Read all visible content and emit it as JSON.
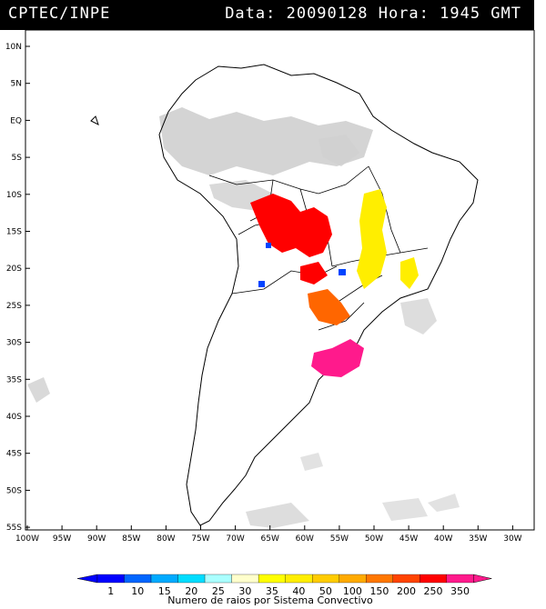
{
  "header": {
    "left": "CPTEC/INPE",
    "right": "Data: 20090128 Hora: 1945 GMT"
  },
  "map": {
    "lat_labels": [
      "10N",
      "5N",
      "EQ",
      "5S",
      "10S",
      "15S",
      "20S",
      "25S",
      "30S",
      "35S",
      "40S",
      "45S",
      "50S",
      "55S"
    ],
    "lon_labels": [
      "100W",
      "95W",
      "90W",
      "85W",
      "80W",
      "75W",
      "70W",
      "65W",
      "60W",
      "55W",
      "50W",
      "45W",
      "40W",
      "35W",
      "30W"
    ],
    "colors": {
      "land_line": "#000000",
      "cloud": "#cfcfcf",
      "background": "#ffffff"
    }
  },
  "systems": [
    {
      "name": "red-cluster",
      "class": "250-350",
      "color": "#ff0000"
    },
    {
      "name": "yellow-cluster",
      "class": "35-40",
      "color": "#ffee00"
    },
    {
      "name": "orange-cluster",
      "class": "200-250",
      "color": "#ff6600"
    },
    {
      "name": "magenta-cluster",
      "class": ">350",
      "color": "#ff1a8c"
    },
    {
      "name": "blue-cells",
      "class": "1-10",
      "color": "#0044ff"
    }
  ],
  "legend": {
    "labels": [
      "1",
      "10",
      "15",
      "20",
      "25",
      "30",
      "35",
      "40",
      "50",
      "100",
      "150",
      "200",
      "250",
      "350"
    ],
    "colors": [
      "#0000ff",
      "#0066ff",
      "#00aaff",
      "#00ddff",
      "#aaffff",
      "#ffffcc",
      "#ffff00",
      "#ffee00",
      "#ffcc00",
      "#ffaa00",
      "#ff7700",
      "#ff4400",
      "#ff0000",
      "#ff1a8c"
    ],
    "caption": "Numero de raios por Sistema Convectivo"
  }
}
